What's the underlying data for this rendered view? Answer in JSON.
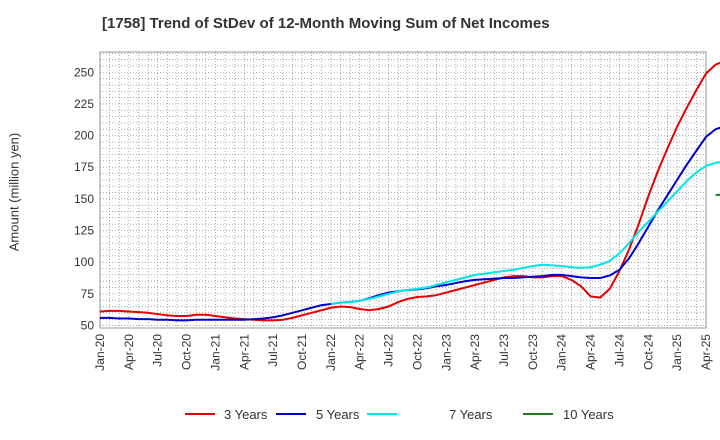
{
  "chart_data": {
    "type": "line",
    "title": "[1758]  Trend of StDev of 12-Month Moving Sum of Net Incomes",
    "xlabel": "",
    "ylabel": "Amount (million yen)",
    "x_tick_labels": [
      "Jan-20",
      "Apr-20",
      "Jul-20",
      "Oct-20",
      "Jan-21",
      "Apr-21",
      "Jul-21",
      "Oct-21",
      "Jan-22",
      "Apr-22",
      "Jul-22",
      "Oct-22",
      "Jan-23",
      "Apr-23",
      "Jul-23",
      "Oct-23",
      "Jan-24",
      "Apr-24",
      "Jul-24",
      "Oct-24",
      "Jan-25",
      "Apr-25"
    ],
    "y_ticks": [
      50,
      75,
      100,
      125,
      150,
      175,
      200,
      225,
      250
    ],
    "ylim": [
      48,
      266
    ],
    "x_range_months": [
      0,
      63
    ],
    "grid": true,
    "legend_position": "bottom",
    "colors": {
      "3 Years": "#e60000",
      "5 Years": "#0000cc",
      "7 Years": "#00e5e5",
      "10 Years": "#1f7a1f"
    },
    "series": [
      {
        "name": "3 Years",
        "color": "#e60000",
        "start_month": 0,
        "values": [
          61,
          61.5,
          61.5,
          61,
          60.5,
          60,
          59,
          58,
          57.5,
          57.5,
          58.5,
          58.5,
          57.5,
          56.5,
          55.5,
          55,
          54.5,
          54,
          54,
          54.5,
          56,
          58,
          60,
          62,
          64,
          65,
          64.5,
          63,
          62,
          63,
          65,
          68.5,
          71,
          72.5,
          73,
          74,
          76,
          78,
          80,
          82,
          84,
          86,
          88,
          89,
          89,
          88,
          88,
          89,
          89,
          86,
          81,
          73,
          72,
          79,
          93,
          110,
          130,
          152,
          172,
          190,
          207,
          222,
          236,
          249,
          256,
          259,
          260
        ]
      },
      {
        "name": "5 Years",
        "color": "#0000cc",
        "start_month": 0,
        "values": [
          56,
          56,
          55.5,
          55.5,
          55,
          55,
          54.5,
          54.5,
          54,
          54,
          54.5,
          54.5,
          54.5,
          54.5,
          54.5,
          54.5,
          55,
          55.5,
          56.5,
          58,
          60,
          62,
          64,
          66,
          67,
          68,
          68.5,
          69.5,
          71.5,
          74,
          76,
          77,
          78,
          78.5,
          79.5,
          81,
          82,
          83.5,
          85,
          86,
          86.5,
          87,
          87.5,
          87.5,
          88,
          88.5,
          89,
          90,
          90,
          89,
          88,
          87.5,
          87.5,
          89.5,
          94,
          103,
          115,
          128,
          141,
          153,
          165,
          177,
          188,
          199,
          205,
          207.5,
          208.5
        ]
      },
      {
        "name": "7 Years",
        "color": "#00e5e5",
        "start_month": 24,
        "values": [
          67,
          68,
          68.5,
          69.5,
          71,
          73,
          75,
          77,
          78,
          79,
          80,
          82,
          84,
          86,
          88,
          90,
          91,
          92,
          93,
          94,
          95.5,
          97,
          98,
          97.5,
          97,
          96,
          95.5,
          96,
          98,
          101,
          107,
          115,
          124,
          132,
          140,
          148,
          156,
          164,
          171,
          176,
          178.5,
          179.5
        ]
      },
      {
        "name": "10 Years",
        "color": "#1f7a1f",
        "start_month": 64,
        "values": [
          153,
          153.5
        ]
      }
    ]
  }
}
